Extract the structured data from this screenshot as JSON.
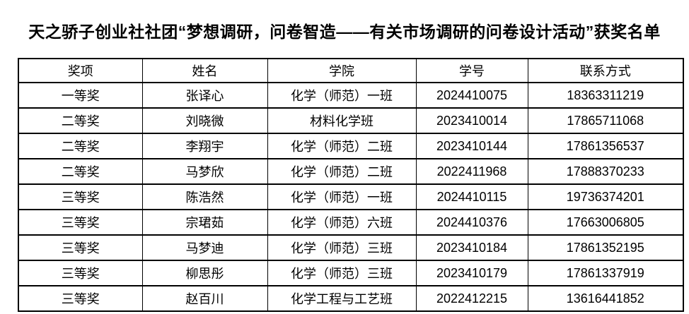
{
  "page": {
    "background_color": "#ffffff",
    "text_color": "#000000",
    "border_color": "#000000"
  },
  "title": "天之骄子创业社社团“梦想调研，问卷智造——有关市场调研的问卷设计活动”获奖名单",
  "table": {
    "headers": [
      "奖项",
      "姓名",
      "学院",
      "学号",
      "联系方式"
    ],
    "rows": [
      [
        "一等奖",
        "张译心",
        "化学（师范）一班",
        "2024410075",
        "18363311219"
      ],
      [
        "二等奖",
        "刘晓微",
        "材料化学班",
        "2023410014",
        "17865711068"
      ],
      [
        "二等奖",
        "李翔宇",
        "化学（师范）二班",
        "2023410144",
        "17861356537"
      ],
      [
        "二等奖",
        "马梦欣",
        "化学（师范）二班",
        "2022411968",
        "17888370233"
      ],
      [
        "三等奖",
        "陈浩然",
        "化学（师范）一班",
        "2024410115",
        "19736374201"
      ],
      [
        "三等奖",
        "宗珺茹",
        "化学（师范）六班",
        "2024410376",
        "17663006805"
      ],
      [
        "三等奖",
        "马梦迪",
        "化学（师范）三班",
        "2023410184",
        "17861352195"
      ],
      [
        "三等奖",
        "柳思彤",
        "化学（师范）三班",
        "2023410179",
        "17861337919"
      ],
      [
        "三等奖",
        "赵百川",
        "化学工程与工艺班",
        "2022412215",
        "13616441852"
      ]
    ]
  }
}
